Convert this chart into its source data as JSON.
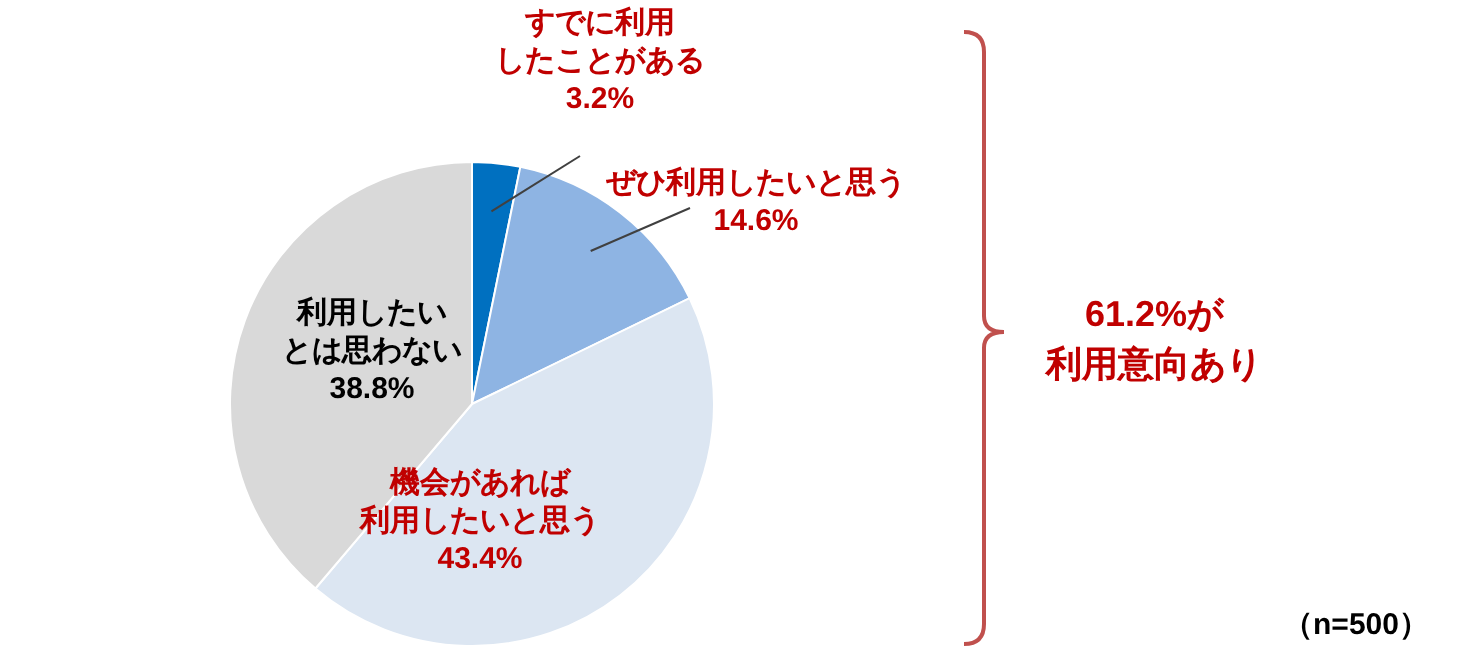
{
  "chart_data": {
    "type": "pie",
    "categories": [
      "すでに利用したことがある",
      "ぜひ利用したいと思う",
      "機会があれば利用したいと思う",
      "利用したいとは思わない"
    ],
    "values": [
      3.2,
      14.6,
      43.4,
      38.8
    ],
    "colors": [
      "#0070c0",
      "#8eb4e3",
      "#dce6f2",
      "#d9d9d9"
    ],
    "value_labels": [
      "3.2%",
      "14.6%",
      "43.4%",
      "38.8%"
    ],
    "annotations": [
      "61.2%が利用意向あり",
      "（n=500）"
    ]
  }
}
